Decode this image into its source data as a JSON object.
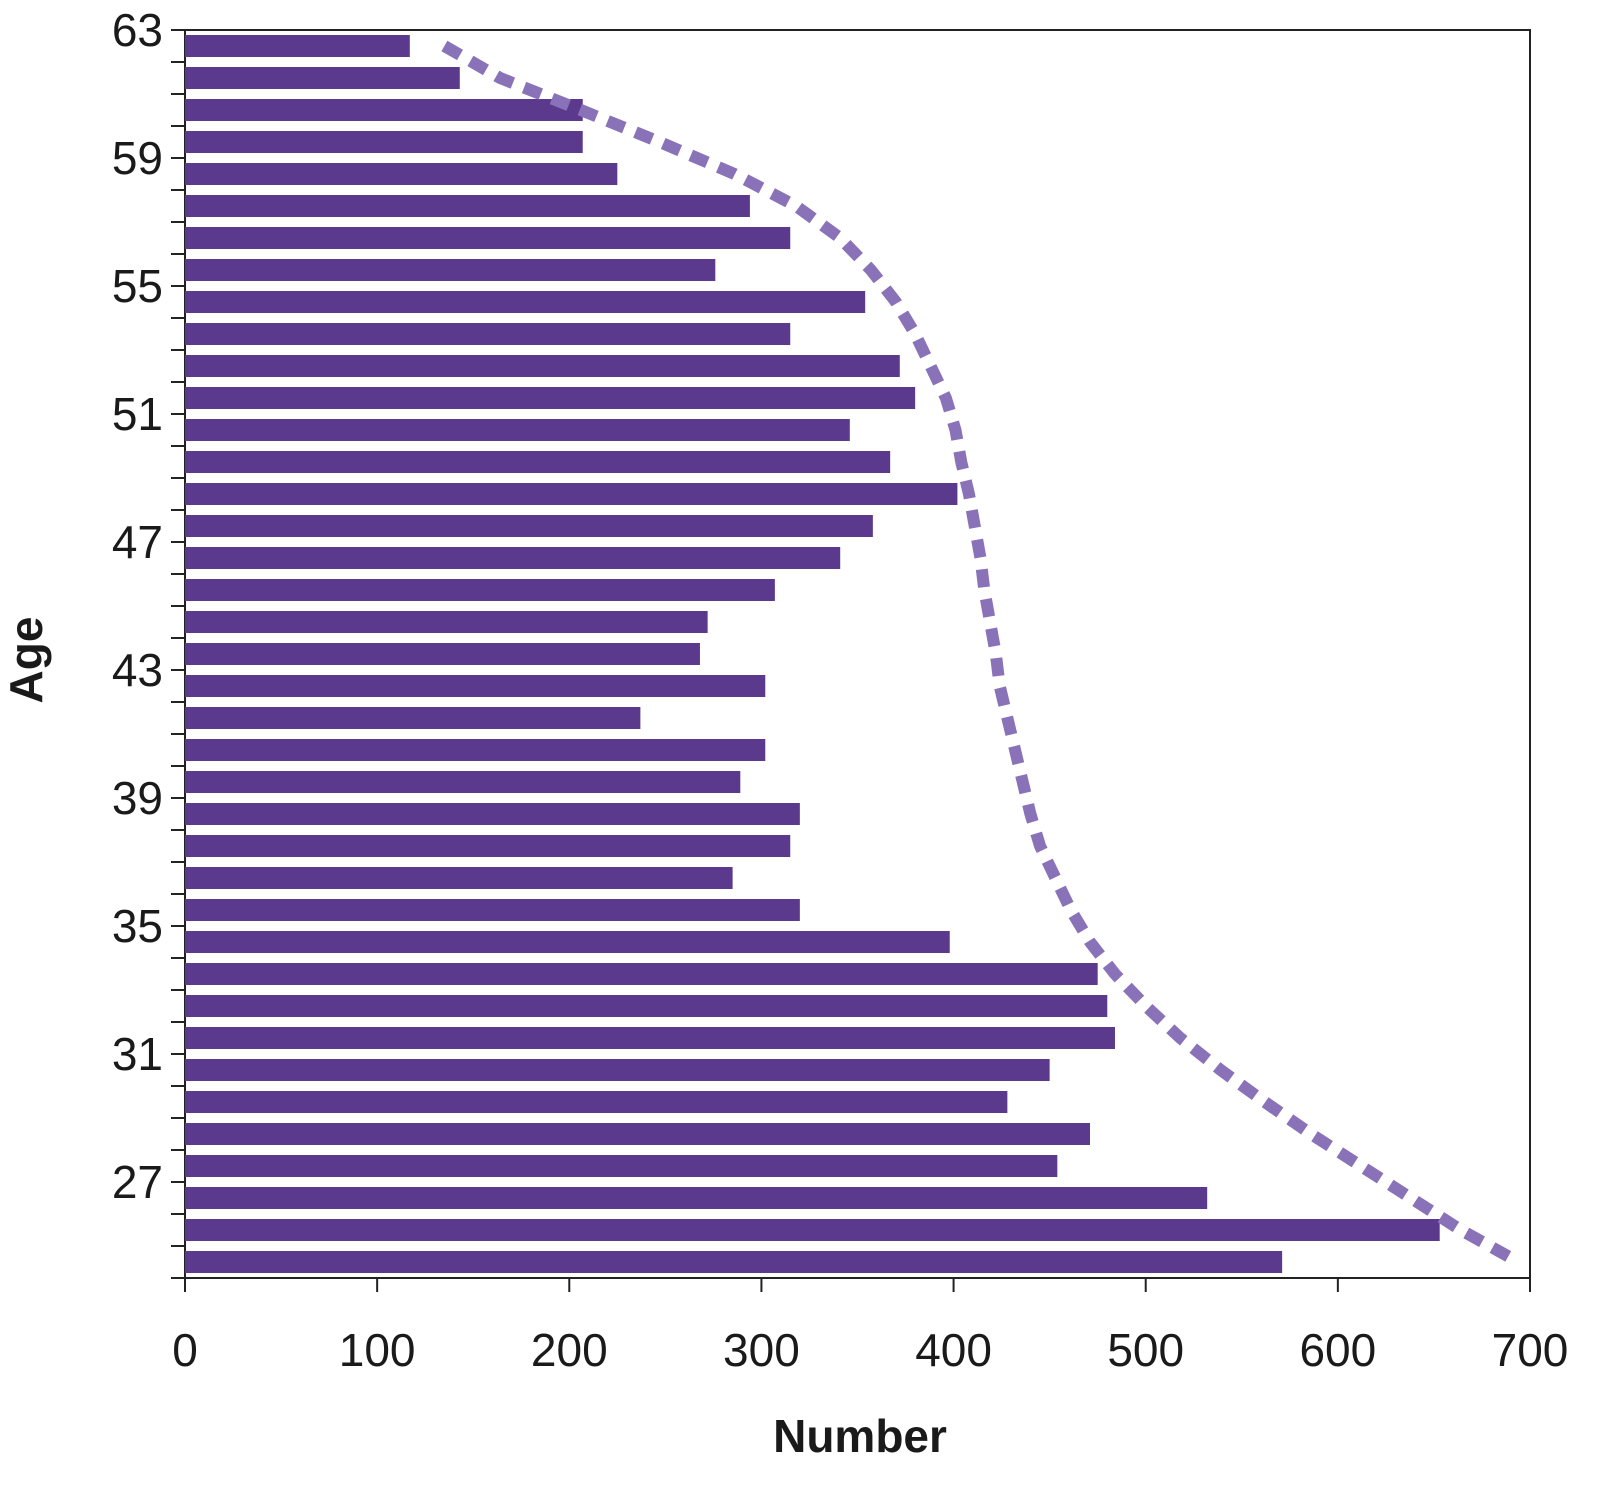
{
  "chart_data": {
    "type": "bar",
    "orientation": "horizontal",
    "xlabel": "Number",
    "ylabel": "Age",
    "categories": [
      "63",
      null,
      null,
      null,
      "59",
      null,
      null,
      null,
      "55",
      null,
      null,
      null,
      "51",
      null,
      null,
      null,
      "47",
      null,
      null,
      null,
      "43",
      null,
      null,
      null,
      "39",
      null,
      null,
      null,
      "35",
      null,
      null,
      null,
      "31",
      null,
      null,
      null,
      "27",
      null,
      null
    ],
    "series": [
      {
        "type": "bar",
        "color": "#5b3a8e",
        "values": [
          117,
          143,
          207,
          207,
          225,
          294,
          315,
          276,
          354,
          315,
          372,
          380,
          346,
          367,
          402,
          358,
          341,
          307,
          272,
          268,
          302,
          237,
          302,
          289,
          320,
          315,
          285,
          320,
          398,
          475,
          480,
          484,
          450,
          428,
          471,
          454,
          532,
          653,
          571
        ]
      },
      {
        "type": "line",
        "dashed": true,
        "color": "#8a72b8",
        "values": [
          135,
          164,
          206,
          247,
          286,
          318,
          341,
          357,
          370,
          380,
          388,
          396,
          401,
          404,
          408,
          411,
          414,
          416,
          419,
          422,
          424,
          428,
          432,
          436,
          440,
          445,
          453,
          461,
          471,
          484,
          500,
          518,
          539,
          562,
          586,
          612,
          638,
          664,
          694
        ]
      }
    ],
    "xlim": [
      0,
      700
    ],
    "xticks": [
      0,
      100,
      200,
      300,
      400,
      500,
      600,
      700
    ]
  }
}
